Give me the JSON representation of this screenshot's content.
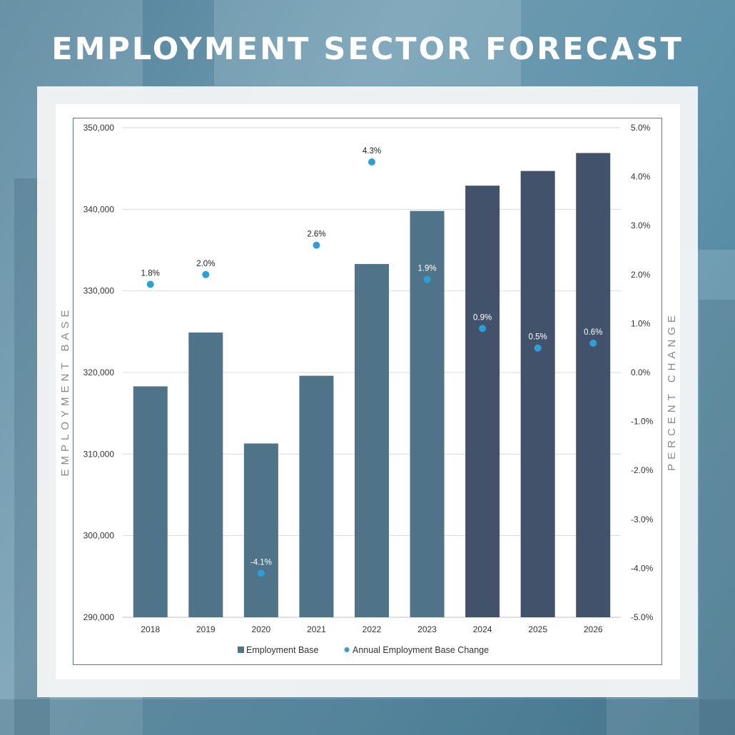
{
  "title": "EMPLOYMENT SECTOR FORECAST",
  "colors": {
    "bar_historic": "#4f7489",
    "bar_forecast": "#43526b",
    "dot": "#2a9fd8",
    "background": "#5f93ab"
  },
  "chart_data": {
    "type": "bar",
    "categories": [
      "2018",
      "2019",
      "2020",
      "2021",
      "2022",
      "2023",
      "2024",
      "2025",
      "2026"
    ],
    "series": [
      {
        "name": "Employment Base",
        "axis": "left",
        "values": [
          318300,
          324900,
          311300,
          319600,
          333300,
          339800,
          342900,
          344700,
          346900
        ]
      },
      {
        "name": "Annual Employment Base Change",
        "axis": "right",
        "type": "scatter",
        "values": [
          1.8,
          2.0,
          -4.1,
          2.6,
          4.3,
          1.9,
          0.9,
          0.5,
          0.6
        ],
        "labels": [
          "1.8%",
          "2.0%",
          "-4.1%",
          "2.6%",
          "4.3%",
          "1.9%",
          "0.9%",
          "0.5%",
          "0.6%"
        ]
      }
    ],
    "forecast_start_index": 6,
    "ylabel": "EMPLOYMENT BASE",
    "y2label": "PERCENT CHANGE",
    "ylim": [
      290000,
      350000
    ],
    "y2lim": [
      -5.0,
      5.0
    ],
    "yticks": [
      "290,000",
      "300,000",
      "310,000",
      "320,000",
      "330,000",
      "340,000",
      "350,000"
    ],
    "y2ticks": [
      "-5.0%",
      "-4.0%",
      "-3.0%",
      "-2.0%",
      "-1.0%",
      "0.0%",
      "1.0%",
      "2.0%",
      "3.0%",
      "4.0%",
      "5.0%"
    ],
    "grid": true,
    "legend_position": "bottom"
  }
}
